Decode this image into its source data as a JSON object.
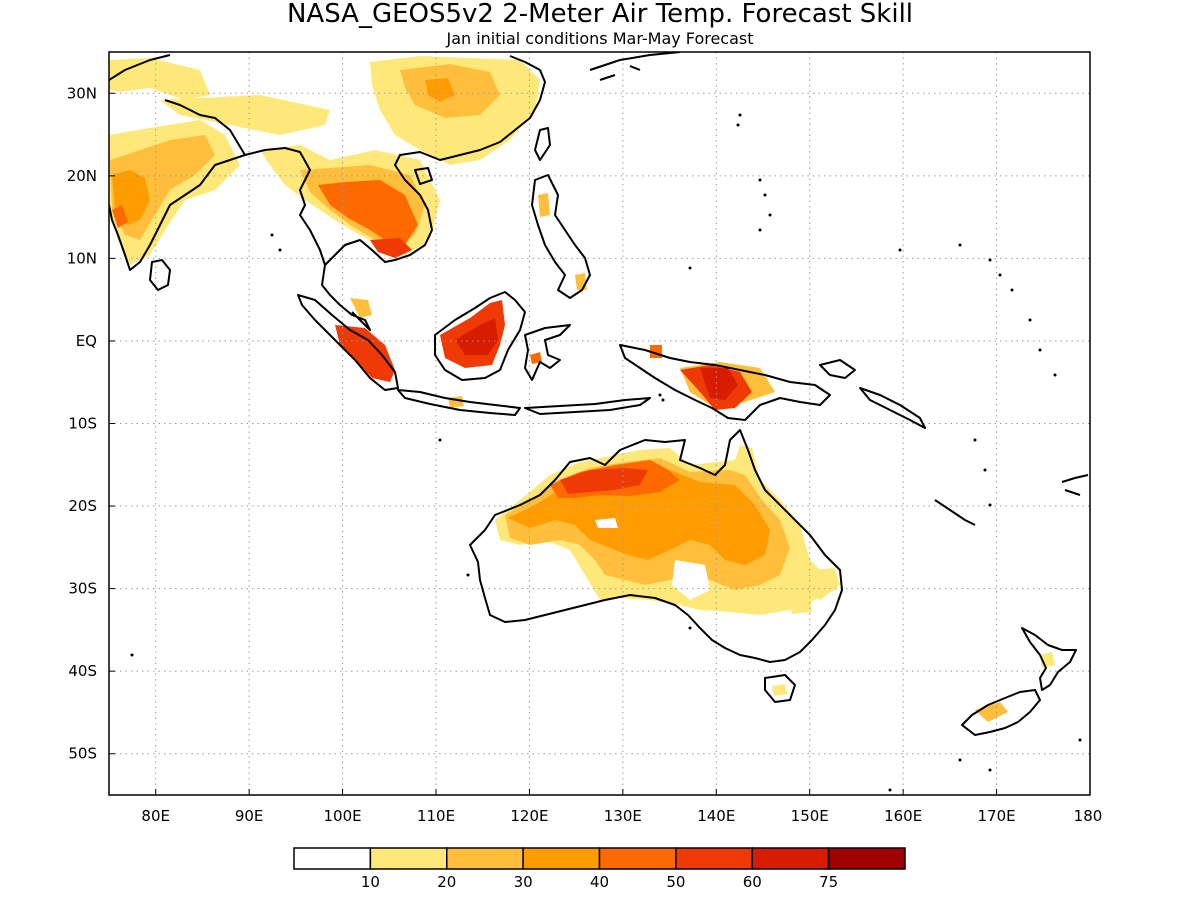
{
  "title": "NASA_GEOS5v2 2-Meter Air Temp. Forecast Skill",
  "subtitle": "Jan initial conditions  Mar-May Forecast",
  "map": {
    "lon_range": [
      75,
      180
    ],
    "lat_range": [
      -55,
      35
    ],
    "lon_ticks": [
      {
        "value": 80,
        "label": "80E"
      },
      {
        "value": 90,
        "label": "90E"
      },
      {
        "value": 100,
        "label": "100E"
      },
      {
        "value": 110,
        "label": "110E"
      },
      {
        "value": 120,
        "label": "120E"
      },
      {
        "value": 130,
        "label": "130E"
      },
      {
        "value": 140,
        "label": "140E"
      },
      {
        "value": 150,
        "label": "150E"
      },
      {
        "value": 160,
        "label": "160E"
      },
      {
        "value": 170,
        "label": "170E"
      },
      {
        "value": 180,
        "label": "180"
      }
    ],
    "lat_ticks": [
      {
        "value": 30,
        "label": "30N"
      },
      {
        "value": 20,
        "label": "20N"
      },
      {
        "value": 10,
        "label": "10N"
      },
      {
        "value": 0,
        "label": "EQ"
      },
      {
        "value": -10,
        "label": "10S"
      },
      {
        "value": -20,
        "label": "20S"
      },
      {
        "value": -30,
        "label": "30S"
      },
      {
        "value": -40,
        "label": "40S"
      },
      {
        "value": -50,
        "label": "50S"
      }
    ],
    "grid": true
  },
  "colorbar": {
    "colors": [
      "#ffffff",
      "#ffe87a",
      "#ffbf3d",
      "#ff9c00",
      "#ff6a00",
      "#f03a06",
      "#d81c00",
      "#a00000"
    ],
    "labels": [
      "10",
      "20",
      "30",
      "40",
      "50",
      "60",
      "75"
    ]
  }
}
